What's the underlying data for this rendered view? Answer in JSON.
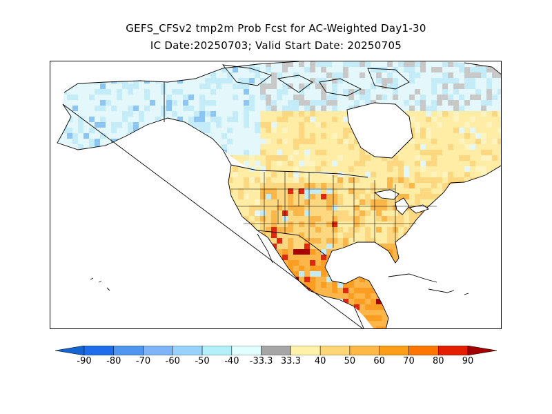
{
  "title": {
    "line1": "GEFS_CFSv2 tmp2m Prob Fcst for AC-Weighted Day1-30",
    "line2": "IC Date:20250703; Valid Start Date: 20250705"
  },
  "legend": {
    "labels": [
      "-90",
      "-80",
      "-70",
      "-60",
      "-50",
      "-40",
      "-33.3",
      "33.3",
      "40",
      "50",
      "60",
      "70",
      "80",
      "90"
    ],
    "bins": [
      {
        "color": "#1464d2"
      },
      {
        "color": "#1e6eeb"
      },
      {
        "color": "#5096f0"
      },
      {
        "color": "#80b4f8"
      },
      {
        "color": "#96d2fa"
      },
      {
        "color": "#b4f0fa"
      },
      {
        "color": "#e1ffff"
      },
      {
        "color": "#a6a6a6"
      },
      {
        "color": "#fff0aa"
      },
      {
        "color": "#fed678"
      },
      {
        "color": "#fdb846"
      },
      {
        "color": "#fd9e19"
      },
      {
        "color": "#fe7600"
      },
      {
        "color": "#e61e00"
      },
      {
        "color": "#a50000"
      }
    ]
  },
  "map": {
    "colors": {
      "land": "#ffeca5",
      "lightyellow": "#fff4c0",
      "warm": "#fed880",
      "orange": "#fdb64a",
      "deeporange": "#fd9e22",
      "red": "#e02810",
      "darkred": "#a80000",
      "paleblue": "#e4f8fb",
      "lightblue": "#c4ecf8",
      "blue": "#8cc4f4",
      "deepblue": "#3a7ee8",
      "gray": "#c8c8c8",
      "outline": "#000000"
    }
  }
}
